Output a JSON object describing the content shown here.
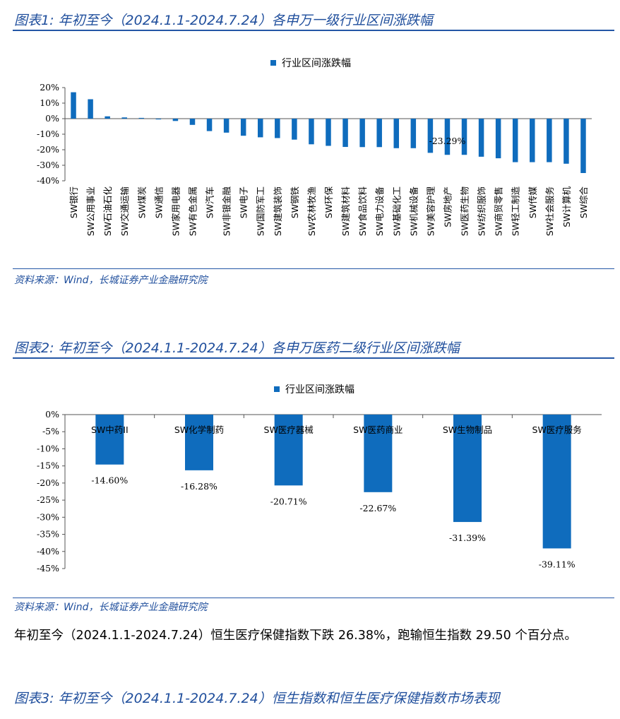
{
  "figure1": {
    "title": "图表1:  年初至今（2024.1.1-2024.7.24）各申万一级行业区间涨跌幅",
    "legend": "行业区间涨跌幅",
    "source": "资料来源：Wind，长城证券产业金融研究院",
    "annotation": "-23.29%",
    "chart_data": {
      "type": "bar",
      "categories": [
        "SW银行",
        "SW公用事业",
        "SW石油石化",
        "SW交通运输",
        "SW煤炭",
        "SW通信",
        "SW家用电器",
        "SW有色金属",
        "SW汽车",
        "SW非银金融",
        "SW电子",
        "SW国防军工",
        "SW建筑装饰",
        "SW钢铁",
        "SW农林牧渔",
        "SW环保",
        "SW建筑材料",
        "SW食品饮料",
        "SW电力设备",
        "SW基础化工",
        "SW机械设备",
        "SW美容护理",
        "SW房地产",
        "SW医药生物",
        "SW纺织服饰",
        "SW商贸零售",
        "SW轻工制造",
        "SW传媒",
        "SW社会服务",
        "SW计算机",
        "SW综合"
      ],
      "series": [
        {
          "name": "行业区间涨跌幅",
          "values": [
            17.0,
            12.5,
            1.5,
            0.8,
            0.5,
            -0.5,
            -1.5,
            -4.0,
            -8.0,
            -9.0,
            -11.0,
            -12.0,
            -12.5,
            -13.5,
            -16.5,
            -17.5,
            -18.2,
            -18.3,
            -18.3,
            -19.0,
            -19.0,
            -22.0,
            -23.29,
            -23.29,
            -24.5,
            -25.5,
            -28.0,
            -28.0,
            -28.0,
            -29.0,
            -35.0
          ]
        }
      ],
      "ylim": [
        -40,
        20
      ],
      "yticks": [
        "20%",
        "10%",
        "0%",
        "-10%",
        "-20%",
        "-30%",
        "-40%"
      ],
      "ytick_values": [
        20,
        10,
        0,
        -10,
        -20,
        -30,
        -40
      ],
      "color": "#0f6cbd"
    }
  },
  "figure2": {
    "title": "图表2:  年初至今（2024.1.1-2024.7.24）各申万医药二级行业区间涨跌幅",
    "legend": "行业区间涨跌幅",
    "source": "资料来源：Wind，长城证券产业金融研究院",
    "chart_data": {
      "type": "bar",
      "categories": [
        "SW中药II",
        "SW化学制药",
        "SW医疗器械",
        "SW医药商业",
        "SW生物制品",
        "SW医疗服务"
      ],
      "series": [
        {
          "name": "行业区间涨跌幅",
          "values": [
            -14.6,
            -16.28,
            -20.71,
            -22.67,
            -31.39,
            -39.11
          ]
        }
      ],
      "data_labels": [
        "-14.60%",
        "-16.28%",
        "-20.71%",
        "-22.67%",
        "-31.39%",
        "-39.11%"
      ],
      "ylim": [
        -45,
        0
      ],
      "yticks": [
        "0%",
        "-5%",
        "-10%",
        "-15%",
        "-20%",
        "-25%",
        "-30%",
        "-35%",
        "-40%",
        "-45%"
      ],
      "ytick_values": [
        0,
        -5,
        -10,
        -15,
        -20,
        -25,
        -30,
        -35,
        -40,
        -45
      ],
      "color": "#0f6cbd"
    }
  },
  "paragraph": "年初至今（2024.1.1-2024.7.24）恒生医疗保健指数下跌 26.38%，跑输恒生指数 29.50 个百分点。",
  "figure3": {
    "title": "图表3:  年初至今（2024.1.1-2024.7.24）恒生指数和恒生医疗保健指数市场表现"
  }
}
